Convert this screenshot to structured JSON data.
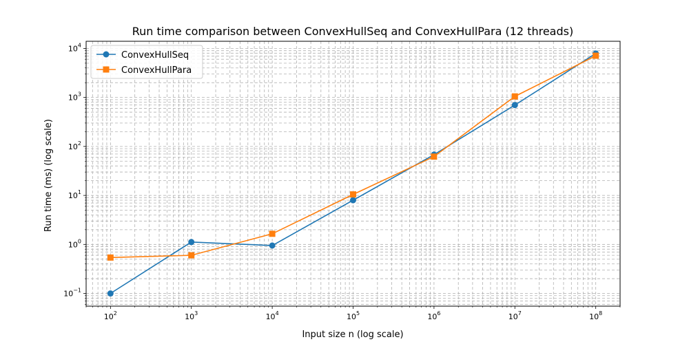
{
  "chart_data": {
    "type": "line",
    "title": "Run time comparison between ConvexHullSeq and ConvexHullPara (12 threads)",
    "xlabel": "Input size n (log scale)",
    "ylabel": "Run time (ms) (log scale)",
    "xscale": "log",
    "yscale": "log",
    "xlim": [
      50,
      200000000
    ],
    "ylim": [
      0.055,
      14000
    ],
    "grid": true,
    "legend": "top-left",
    "x": [
      100,
      1000,
      10000,
      100000,
      1000000,
      10000000,
      100000000
    ],
    "x_ticks": [
      {
        "base": "10",
        "exp": "2"
      },
      {
        "base": "10",
        "exp": "3"
      },
      {
        "base": "10",
        "exp": "4"
      },
      {
        "base": "10",
        "exp": "5"
      },
      {
        "base": "10",
        "exp": "6"
      },
      {
        "base": "10",
        "exp": "7"
      },
      {
        "base": "10",
        "exp": "8"
      }
    ],
    "y_ticks": [
      {
        "base": "10",
        "exp": "−1"
      },
      {
        "base": "10",
        "exp": "0"
      },
      {
        "base": "10",
        "exp": "1"
      },
      {
        "base": "10",
        "exp": "2"
      },
      {
        "base": "10",
        "exp": "3"
      },
      {
        "base": "10",
        "exp": "4"
      }
    ],
    "series": [
      {
        "name": "ConvexHullSeq",
        "color": "#1f77b4",
        "marker": "circle",
        "values": [
          0.1,
          1.12,
          0.95,
          8,
          68,
          700,
          7900
        ]
      },
      {
        "name": "ConvexHullPara",
        "color": "#ff7f0e",
        "marker": "square",
        "values": [
          0.54,
          0.6,
          1.65,
          10.5,
          62,
          1050,
          7100
        ]
      }
    ]
  }
}
